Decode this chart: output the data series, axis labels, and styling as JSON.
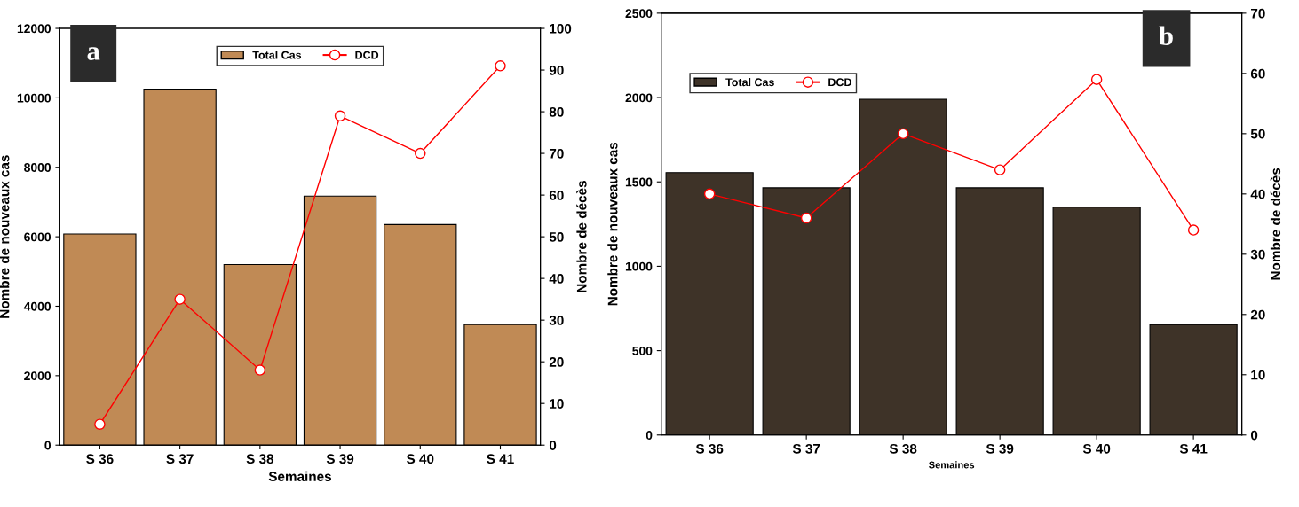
{
  "chart_data": [
    {
      "type": "bar",
      "annotations": [
        "a"
      ],
      "xlabel": "Semaines",
      "ylabel": "Nombre de nouveaux cas",
      "y2label": "Nombre de décès",
      "categories": [
        "S 36",
        "S 37",
        "S 38",
        "S 39",
        "S 40",
        "S 41"
      ],
      "series": [
        {
          "name": "Total Cas",
          "color": "#c08a55",
          "values": [
            6080,
            10250,
            5200,
            7170,
            6350,
            3470
          ]
        },
        {
          "name": "DCD",
          "type": "line",
          "axis": "y2",
          "color": "#ff0000",
          "values": [
            5,
            35,
            18,
            79,
            70,
            91
          ]
        }
      ],
      "ylim": [
        0,
        12000
      ],
      "yticks": [
        0,
        2000,
        4000,
        6000,
        8000,
        10000,
        12000
      ],
      "y2lim": [
        0,
        100
      ],
      "y2ticks": [
        0,
        10,
        20,
        30,
        40,
        50,
        60,
        70,
        80,
        90,
        100
      ],
      "legend": "top",
      "marker": "circle",
      "grid": false
    },
    {
      "type": "bar",
      "annotations": [
        "b"
      ],
      "xlabel": "Semaines",
      "ylabel": "Nombre de nouveaux cas",
      "y2label": "Nombre de décès",
      "categories": [
        "S 36",
        "S 37",
        "S 38",
        "S 39",
        "S 40",
        "S 41"
      ],
      "series": [
        {
          "name": "Total Cas",
          "color": "#3e3328",
          "values": [
            1555,
            1465,
            1990,
            1465,
            1350,
            655
          ]
        },
        {
          "name": "DCD",
          "type": "line",
          "axis": "y2",
          "color": "#ff0000",
          "values": [
            40,
            36,
            50,
            44,
            59,
            34
          ]
        }
      ],
      "ylim": [
        0,
        2500
      ],
      "yticks": [
        0,
        500,
        1000,
        1500,
        2000,
        2500
      ],
      "y2lim": [
        0,
        70
      ],
      "y2ticks": [
        0,
        10,
        20,
        30,
        40,
        50,
        60,
        70
      ],
      "legend": "top left",
      "marker": "circle",
      "grid": false
    }
  ]
}
